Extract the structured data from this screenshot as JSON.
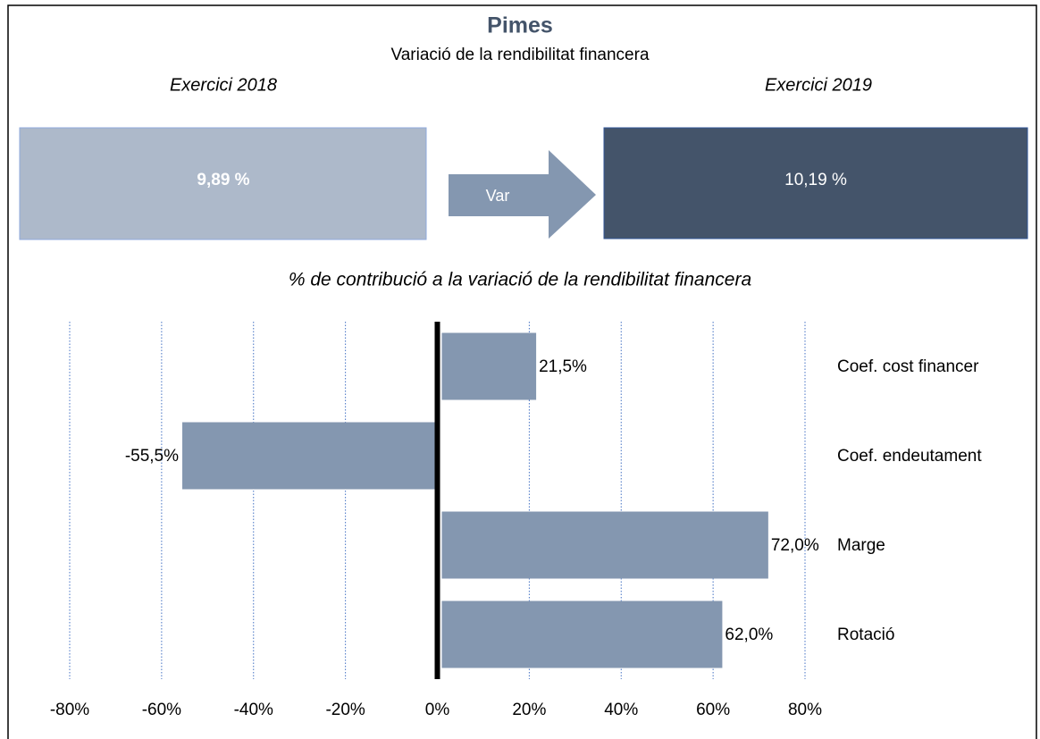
{
  "header": {
    "title": "Pimes",
    "subtitle": "Variació de la rendibilitat financera",
    "left_label": "Exercici 2018",
    "right_label": "Exercici 2019",
    "left_value": "9,89 %",
    "right_value": "10,19 %",
    "arrow_label": "Var"
  },
  "chart_data": {
    "type": "hbar",
    "title": "% de contribució a la variació de la rendibilitat financera",
    "categories": [
      "Coef. cost financer",
      "Coef. endeutament",
      "Marge",
      "Rotació"
    ],
    "values": [
      21.5,
      -55.5,
      72.0,
      62.0
    ],
    "value_labels": [
      "21,5%",
      "-55,5%",
      "72,0%",
      "62,0%"
    ],
    "color": "#8497b0",
    "xlim": [
      -80,
      80
    ],
    "xticks": [
      {
        "value": -80,
        "label": "-80%"
      },
      {
        "value": -60,
        "label": "-60%"
      },
      {
        "value": -40,
        "label": "-40%"
      },
      {
        "value": -20,
        "label": "-20%"
      },
      {
        "value": 0,
        "label": "0%"
      },
      {
        "value": 20,
        "label": "20%"
      },
      {
        "value": 40,
        "label": "40%"
      },
      {
        "value": 60,
        "label": "60%"
      },
      {
        "value": 80,
        "label": "80%"
      }
    ],
    "grid": true
  }
}
